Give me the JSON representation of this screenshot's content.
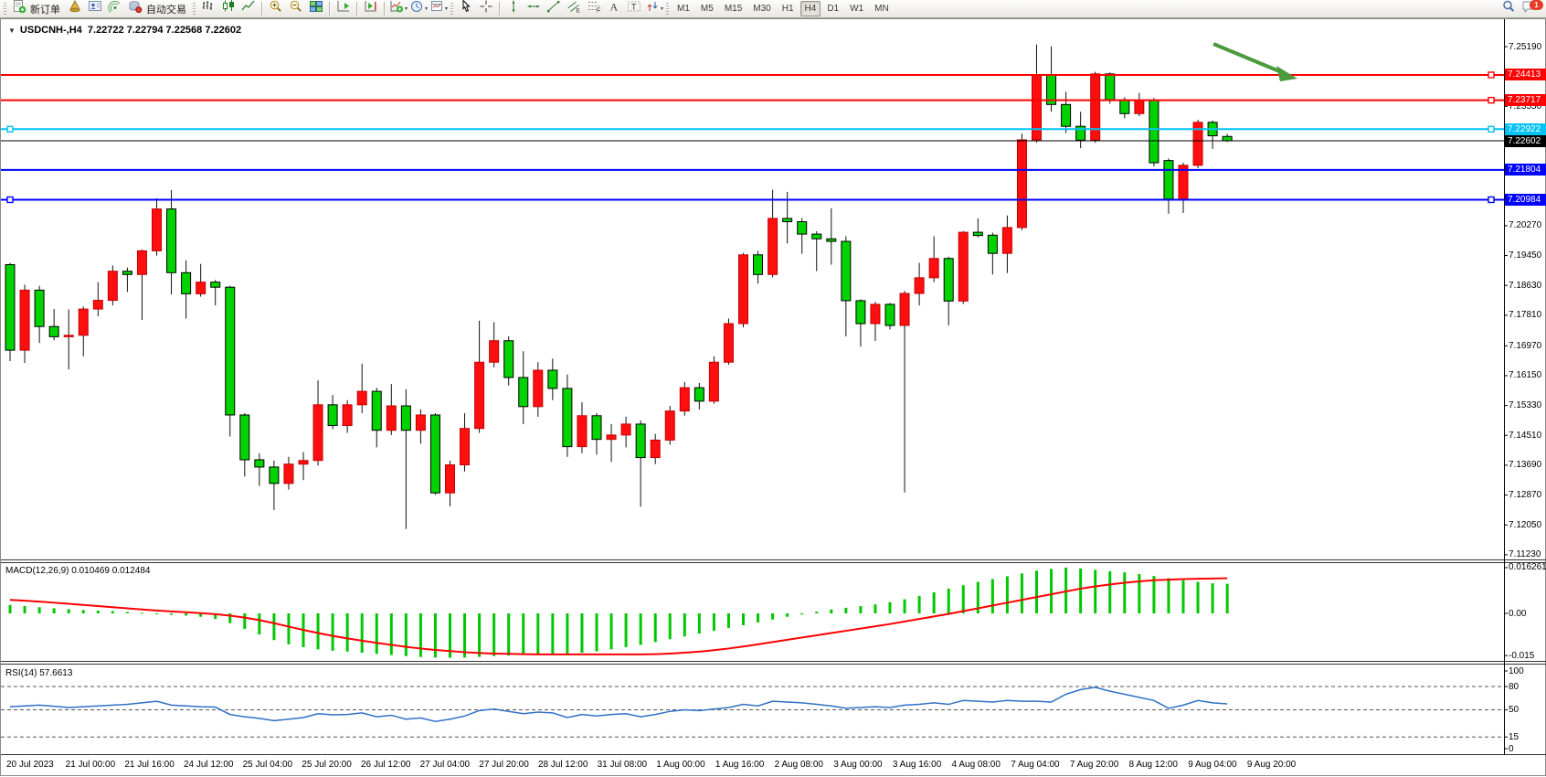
{
  "toolbar": {
    "new_order_label": "新订单",
    "auto_trading_label": "自动交易",
    "timeframes": [
      {
        "label": "M1"
      },
      {
        "label": "M5"
      },
      {
        "label": "M15"
      },
      {
        "label": "M30"
      },
      {
        "label": "H1"
      },
      {
        "label": "H4",
        "active": true
      },
      {
        "label": "D1"
      },
      {
        "label": "W1"
      },
      {
        "label": "MN"
      }
    ],
    "notification_count": "1",
    "icons": [
      "new-order-icon",
      "market-watch-icon",
      "navigator-icon",
      "signals-icon",
      "auto-trading-icon",
      "bar-chart-icon",
      "candlestick-icon",
      "line-chart-icon",
      "zoom-in-icon",
      "zoom-out-icon",
      "tile-windows-icon",
      "auto-scroll-icon",
      "chart-shift-icon",
      "indicators-icon",
      "periods-icon",
      "templates-icon",
      "cursor-icon",
      "crosshair-icon",
      "vertical-line-icon",
      "horizontal-line-icon",
      "trendline-icon",
      "equidistant-channel-icon",
      "fibonacci-icon",
      "text-icon",
      "text-label-icon",
      "arrows-icon",
      "search-icon",
      "chat-icon"
    ]
  },
  "chart": {
    "title": {
      "symbol_period": "USDCNH-,H4",
      "ohlc": "7.22722 7.22794 7.22568 7.22602"
    },
    "indicator_labels": {
      "macd": "MACD(12,26,9) 0.010469 0.012484",
      "rsi": "RSI(14) 57.6613"
    },
    "price_axis": {
      "ticks": [
        "7.25190",
        "7.23550",
        "7.20270",
        "7.19450",
        "7.18630",
        "7.17810",
        "7.16970",
        "7.16150",
        "7.15330",
        "7.14510",
        "7.13690",
        "7.12870",
        "7.12050",
        "7.11230"
      ],
      "tags": [
        {
          "text": "7.24413",
          "bg": "#ff0000",
          "fg": "#ffffff"
        },
        {
          "text": "7.23717",
          "bg": "#ff0000",
          "fg": "#ffffff"
        },
        {
          "text": "7.22922",
          "bg": "#00c3f5",
          "fg": "#ffffff"
        },
        {
          "text": "7.22602",
          "bg": "#000000",
          "fg": "#ffffff"
        },
        {
          "text": "7.21804",
          "bg": "#0000ff",
          "fg": "#ffffff"
        },
        {
          "text": "7.20984",
          "bg": "#0000ff",
          "fg": "#ffffff"
        }
      ],
      "macd_ticks": [
        "0.016261",
        "0.00",
        "-0.015"
      ],
      "rsi_ticks": [
        "100",
        "80",
        "50",
        "15",
        "0"
      ]
    },
    "time_axis": [
      "20 Jul 2023",
      "21 Jul 00:00",
      "21 Jul 16:00",
      "24 Jul 12:00",
      "25 Jul 04:00",
      "25 Jul 20:00",
      "26 Jul 12:00",
      "27 Jul 04:00",
      "27 Jul 20:00",
      "28 Jul 12:00",
      "31 Jul 08:00",
      "1 Aug 00:00",
      "1 Aug 16:00",
      "2 Aug 08:00",
      "3 Aug 00:00",
      "3 Aug 16:00",
      "4 Aug 08:00",
      "7 Aug 04:00",
      "7 Aug 20:00",
      "8 Aug 12:00",
      "9 Aug 04:00",
      "9 Aug 20:00"
    ]
  },
  "chart_data": {
    "type": "candlestick",
    "symbol": "USDCNH-",
    "timeframe": "H4",
    "ylim": [
      7.1123,
      7.2533
    ],
    "colors": {
      "up": "#fe0e0e",
      "down": "#00d300",
      "up_border": "#c40000",
      "down_border": "#000000",
      "wick": "#111111",
      "macd_hist": "#00c800",
      "macd_signal": "#ff0000",
      "rsi_line": "#3171c6",
      "arrow": "#4c9a3c",
      "current_price_line": "#000000"
    },
    "candles": [
      [
        7.192,
        7.1925,
        7.1655,
        7.1685
      ],
      [
        7.1685,
        7.1865,
        7.165,
        7.185
      ],
      [
        7.185,
        7.1862,
        7.1705,
        7.175
      ],
      [
        7.175,
        7.1798,
        7.1712,
        7.1722
      ],
      [
        7.1722,
        7.1797,
        7.1632,
        7.1726
      ],
      [
        7.1726,
        7.1805,
        7.1668,
        7.1798
      ],
      [
        7.1798,
        7.1872,
        7.1778,
        7.1822
      ],
      [
        7.1822,
        7.1918,
        7.1808,
        7.1902
      ],
      [
        7.1902,
        7.1912,
        7.1845,
        7.1893
      ],
      [
        7.1893,
        7.1962,
        7.1768,
        7.1958
      ],
      [
        7.1958,
        7.2102,
        7.1945,
        7.2073
      ],
      [
        7.2073,
        7.2125,
        7.1838,
        7.1898
      ],
      [
        7.1898,
        7.1932,
        7.1772,
        7.184
      ],
      [
        7.184,
        7.1922,
        7.1832,
        7.1872
      ],
      [
        7.1872,
        7.1878,
        7.1808,
        7.1858
      ],
      [
        7.1858,
        7.1862,
        7.1448,
        7.1507
      ],
      [
        7.1507,
        7.1512,
        7.1338,
        7.1384
      ],
      [
        7.1384,
        7.1402,
        7.1312,
        7.1364
      ],
      [
        7.1364,
        7.1382,
        7.1246,
        7.1319
      ],
      [
        7.1319,
        7.1392,
        7.1302,
        7.1372
      ],
      [
        7.1372,
        7.1405,
        7.1328,
        7.1382
      ],
      [
        7.1382,
        7.1602,
        7.1368,
        7.1535
      ],
      [
        7.1535,
        7.1562,
        7.1468,
        7.1478
      ],
      [
        7.1478,
        7.1548,
        7.1458,
        7.1535
      ],
      [
        7.1535,
        7.1648,
        7.1512,
        7.1572
      ],
      [
        7.1572,
        7.1582,
        7.1418,
        7.1465
      ],
      [
        7.1465,
        7.1592,
        7.1452,
        7.1532
      ],
      [
        7.1532,
        7.1578,
        7.1194,
        7.1465
      ],
      [
        7.1465,
        7.1522,
        7.1428,
        7.1507
      ],
      [
        7.1507,
        7.1512,
        7.1288,
        7.1293
      ],
      [
        7.1293,
        7.1382,
        7.1256,
        7.137
      ],
      [
        7.137,
        7.1512,
        7.1352,
        7.147
      ],
      [
        7.147,
        7.1766,
        7.1458,
        7.1652
      ],
      [
        7.1652,
        7.1762,
        7.1638,
        7.1711
      ],
      [
        7.1711,
        7.1723,
        7.1588,
        7.161
      ],
      [
        7.161,
        7.1682,
        7.1482,
        7.153
      ],
      [
        7.153,
        7.1652,
        7.1502,
        7.163
      ],
      [
        7.163,
        7.1662,
        7.1548,
        7.158
      ],
      [
        7.158,
        7.1618,
        7.1392,
        7.142
      ],
      [
        7.142,
        7.1542,
        7.1402,
        7.1505
      ],
      [
        7.1505,
        7.1512,
        7.1398,
        7.144
      ],
      [
        7.144,
        7.1482,
        7.1378,
        7.1452
      ],
      [
        7.1452,
        7.1502,
        7.1418,
        7.1482
      ],
      [
        7.1482,
        7.1492,
        7.1255,
        7.139
      ],
      [
        7.139,
        7.1455,
        7.1372,
        7.1438
      ],
      [
        7.1438,
        7.1532,
        7.1425,
        7.1518
      ],
      [
        7.1518,
        7.1598,
        7.1505,
        7.1582
      ],
      [
        7.1582,
        7.1595,
        7.1522,
        7.1545
      ],
      [
        7.1545,
        7.1668,
        7.1538,
        7.1652
      ],
      [
        7.1652,
        7.1772,
        7.1645,
        7.1758
      ],
      [
        7.1758,
        7.1952,
        7.1748,
        7.1947
      ],
      [
        7.1947,
        7.1958,
        7.1868,
        7.1893
      ],
      [
        7.1893,
        7.2126,
        7.1885,
        7.2047
      ],
      [
        7.2047,
        7.212,
        7.1978,
        7.2038
      ],
      [
        7.2038,
        7.2048,
        7.195,
        7.2004
      ],
      [
        7.2004,
        7.2012,
        7.1902,
        7.1991
      ],
      [
        7.1991,
        7.2075,
        7.192,
        7.1984
      ],
      [
        7.1984,
        7.1998,
        7.1723,
        7.1821
      ],
      [
        7.1821,
        7.1825,
        7.1695,
        7.1758
      ],
      [
        7.1758,
        7.1818,
        7.171,
        7.1811
      ],
      [
        7.1811,
        7.1815,
        7.1742,
        7.1753
      ],
      [
        7.1753,
        7.1848,
        7.1294,
        7.1841
      ],
      [
        7.1841,
        7.1925,
        7.1808,
        7.1884
      ],
      [
        7.1884,
        7.1998,
        7.1872,
        7.1937
      ],
      [
        7.1937,
        7.1942,
        7.1753,
        7.182
      ],
      [
        7.182,
        7.2012,
        7.1812,
        7.2009
      ],
      [
        7.2009,
        7.2047,
        7.1995,
        7.2
      ],
      [
        7.2001,
        7.2008,
        7.1893,
        7.1951
      ],
      [
        7.1951,
        7.2055,
        7.1897,
        7.2022
      ],
      [
        7.2022,
        7.228,
        7.2015,
        7.2263
      ],
      [
        7.2263,
        7.2525,
        7.2255,
        7.244
      ],
      [
        7.244,
        7.252,
        7.234,
        7.236
      ],
      [
        7.236,
        7.2395,
        7.2282,
        7.23
      ],
      [
        7.23,
        7.234,
        7.224,
        7.2262
      ],
      [
        7.2262,
        7.245,
        7.2255,
        7.2444
      ],
      [
        7.2444,
        7.2448,
        7.2362,
        7.2373
      ],
      [
        7.2373,
        7.238,
        7.2322,
        7.2335
      ],
      [
        7.2335,
        7.2392,
        7.2328,
        7.2371
      ],
      [
        7.2371,
        7.2378,
        7.219,
        7.22
      ],
      [
        7.2206,
        7.2212,
        7.206,
        7.21
      ],
      [
        7.21,
        7.22,
        7.2062,
        7.2193
      ],
      [
        7.2193,
        7.2318,
        7.2185,
        7.2311
      ],
      [
        7.2311,
        7.2316,
        7.2238,
        7.2274
      ],
      [
        7.22722,
        7.22794,
        7.22568,
        7.22602
      ]
    ],
    "price_levels": [
      {
        "value": 7.24413,
        "color": "#ff0000",
        "width": 2
      },
      {
        "value": 7.23717,
        "color": "#ff0000",
        "width": 2
      },
      {
        "value": 7.22922,
        "color": "#00c3f5",
        "width": 2
      },
      {
        "value": 7.21804,
        "color": "#0000ff",
        "width": 2
      },
      {
        "value": 7.20984,
        "color": "#0000ff",
        "width": 2
      }
    ],
    "current_price": 7.22602,
    "annotations": [
      {
        "type": "arrow",
        "color": "#4c9a3c",
        "from_price": 7.2445,
        "to_price": 7.2305,
        "note": "points down-right at 7.24413 level"
      }
    ],
    "indicators": {
      "macd": {
        "params": "12,26,9",
        "main_value": 0.010469,
        "signal_value": 0.012484,
        "ylim": [
          -0.015,
          0.016261
        ],
        "histogram": [
          0.003,
          0.0026,
          0.0022,
          0.0018,
          0.0015,
          0.0012,
          0.001,
          0.0008,
          0.0005,
          0.0002,
          -0.0002,
          -0.0005,
          -0.0008,
          -0.0012,
          -0.002,
          -0.0035,
          -0.0055,
          -0.0075,
          -0.0095,
          -0.011,
          -0.012,
          -0.0128,
          -0.0133,
          -0.0136,
          -0.014,
          -0.0144,
          -0.0148,
          -0.0152,
          -0.0155,
          -0.0157,
          -0.0158,
          -0.0157,
          -0.0155,
          -0.0152,
          -0.015,
          -0.0148,
          -0.0146,
          -0.0145,
          -0.0143,
          -0.014,
          -0.0135,
          -0.0128,
          -0.012,
          -0.0112,
          -0.0102,
          -0.0092,
          -0.0082,
          -0.0072,
          -0.0062,
          -0.0052,
          -0.0042,
          -0.0032,
          -0.0022,
          -0.0012,
          -0.0004,
          0.0006,
          0.0014,
          0.002,
          0.0026,
          0.0032,
          0.004,
          0.005,
          0.0062,
          0.0075,
          0.0088,
          0.01,
          0.0112,
          0.0122,
          0.0132,
          0.0142,
          0.0152,
          0.0158,
          0.0163,
          0.016,
          0.0155,
          0.015,
          0.0146,
          0.014,
          0.0133,
          0.0125,
          0.0118,
          0.0112,
          0.0107,
          0.0105
        ],
        "signal": [
          0.0048,
          0.0045,
          0.0042,
          0.0038,
          0.0034,
          0.003,
          0.0026,
          0.0022,
          0.0018,
          0.0014,
          0.001,
          0.0007,
          0.0004,
          0.0001,
          -0.0003,
          -0.0008,
          -0.0015,
          -0.0024,
          -0.0035,
          -0.0047,
          -0.0059,
          -0.007,
          -0.008,
          -0.0089,
          -0.0097,
          -0.0105,
          -0.0112,
          -0.0119,
          -0.0125,
          -0.013,
          -0.0134,
          -0.0138,
          -0.0141,
          -0.0143,
          -0.0144,
          -0.0145,
          -0.0146,
          -0.0146,
          -0.0146,
          -0.0146,
          -0.0146,
          -0.0146,
          -0.0146,
          -0.0146,
          -0.0145,
          -0.0143,
          -0.014,
          -0.0136,
          -0.0131,
          -0.0125,
          -0.0118,
          -0.011,
          -0.0102,
          -0.0094,
          -0.0086,
          -0.0078,
          -0.007,
          -0.0062,
          -0.0054,
          -0.0046,
          -0.0038,
          -0.0029,
          -0.002,
          -0.0011,
          -0.0002,
          0.0008,
          0.0018,
          0.0028,
          0.0038,
          0.0048,
          0.0058,
          0.0068,
          0.0078,
          0.0088,
          0.0096,
          0.0103,
          0.0109,
          0.0114,
          0.0118,
          0.012,
          0.0122,
          0.0123,
          0.0124,
          0.0125
        ]
      },
      "rsi": {
        "period": 14,
        "value": 57.6613,
        "levels_dashed": [
          80,
          50,
          15
        ],
        "ylim": [
          0,
          100
        ],
        "values": [
          54,
          55,
          56,
          54.5,
          53,
          54,
          55,
          56,
          57,
          59,
          61,
          56,
          55,
          54,
          53.5,
          44,
          41,
          39,
          36,
          38,
          40,
          45,
          43.5,
          44,
          46,
          41,
          43,
          38,
          39.5,
          35,
          38,
          42,
          49,
          51,
          48,
          45,
          47,
          46,
          40,
          44,
          42,
          44,
          45,
          41,
          44,
          48,
          50,
          49,
          51,
          53,
          57,
          55,
          61,
          60,
          59,
          57,
          55,
          52,
          53,
          54,
          53,
          56,
          57,
          59,
          57,
          62,
          61,
          60,
          62,
          61,
          61,
          60,
          70,
          76,
          79,
          74,
          70,
          66,
          62,
          52,
          56,
          62,
          59,
          57.66
        ]
      }
    }
  }
}
